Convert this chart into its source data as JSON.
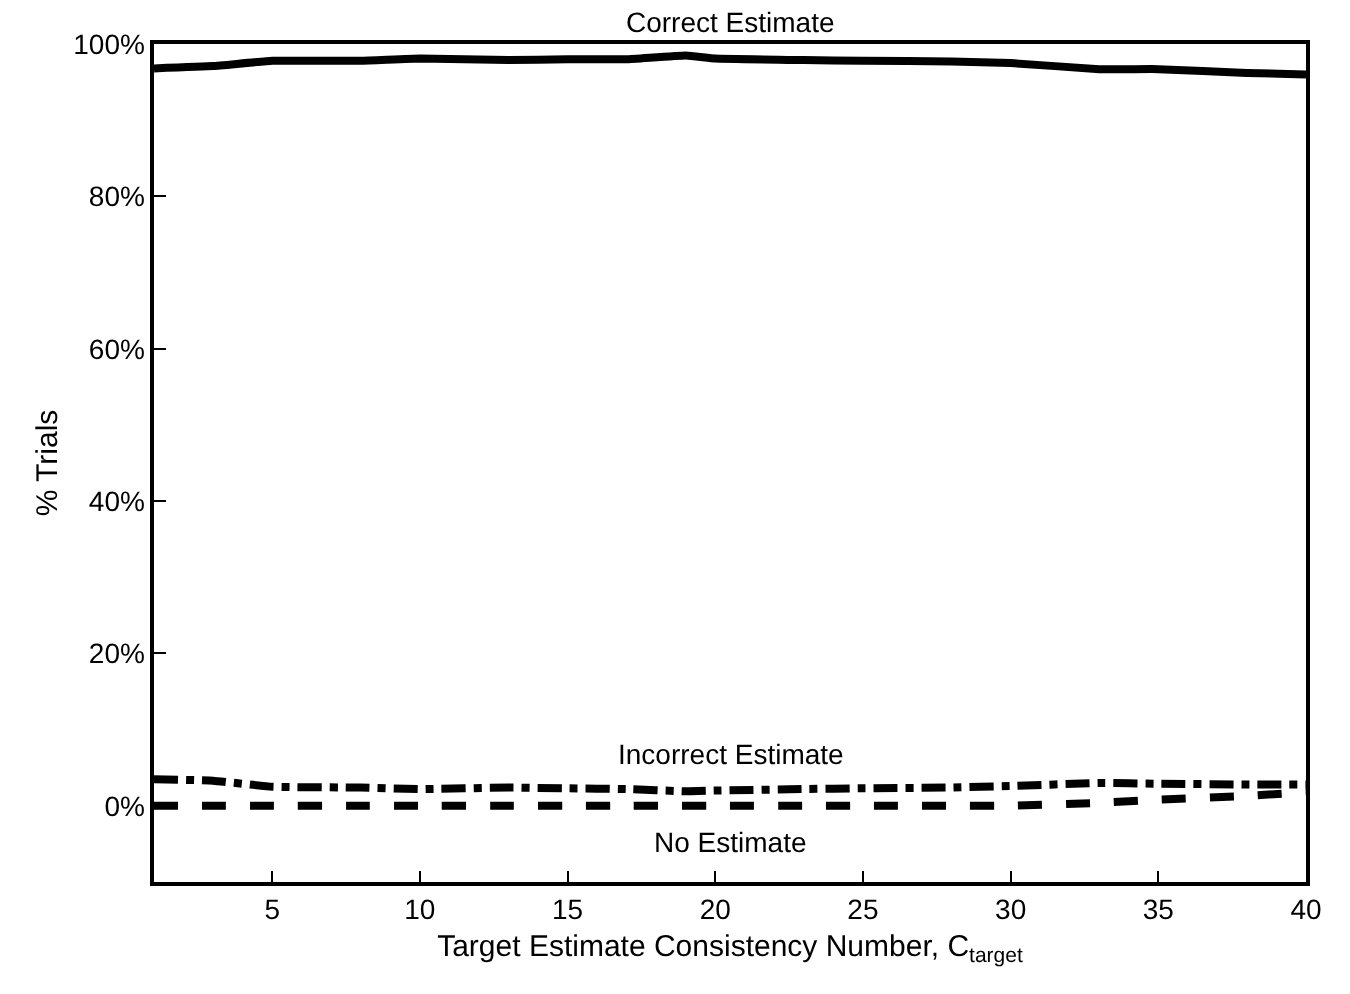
{
  "chart_data": {
    "type": "line",
    "xlabel": "Target Estimate Consistency Number, C$_{target}$",
    "ylabel": "% Trials",
    "xlim": [
      1,
      40
    ],
    "ylim": [
      -10,
      100
    ],
    "xticks": [
      5,
      10,
      15,
      20,
      25,
      30,
      35,
      40
    ],
    "yticks": [
      {
        "value": 0,
        "label": "0%"
      },
      {
        "value": 20,
        "label": "20%"
      },
      {
        "value": 40,
        "label": "40%"
      },
      {
        "value": 60,
        "label": "60%"
      },
      {
        "value": 80,
        "label": "80%"
      },
      {
        "value": 100,
        "label": "100%"
      }
    ],
    "grid": false,
    "legend": false,
    "marker": "none",
    "x": [
      1,
      3,
      5,
      8,
      10,
      13,
      15,
      17,
      19,
      20,
      23,
      25,
      28,
      30,
      33,
      35,
      38,
      40
    ],
    "series": [
      {
        "name": "Correct Estimate",
        "color": "#000000",
        "line_style": "solid",
        "values": [
          96.8,
          97.1,
          97.8,
          97.8,
          98.1,
          97.9,
          98.0,
          98.0,
          98.5,
          98.1,
          97.9,
          97.8,
          97.7,
          97.5,
          96.7,
          96.7,
          96.2,
          96.0
        ]
      },
      {
        "name": "Incorrect Estimate",
        "color": "#000000",
        "line_style": "dashdot",
        "values": [
          3.5,
          3.3,
          2.5,
          2.4,
          2.2,
          2.4,
          2.3,
          2.2,
          1.9,
          2.0,
          2.2,
          2.3,
          2.4,
          2.6,
          3.0,
          2.9,
          2.8,
          2.8
        ]
      },
      {
        "name": "No Estimate",
        "color": "#000000",
        "line_style": "dashed",
        "values": [
          0,
          0,
          0,
          0,
          0,
          0,
          0,
          0,
          0,
          0,
          0,
          0,
          0,
          0,
          0.4,
          0.8,
          1.3,
          1.8
        ]
      }
    ]
  }
}
